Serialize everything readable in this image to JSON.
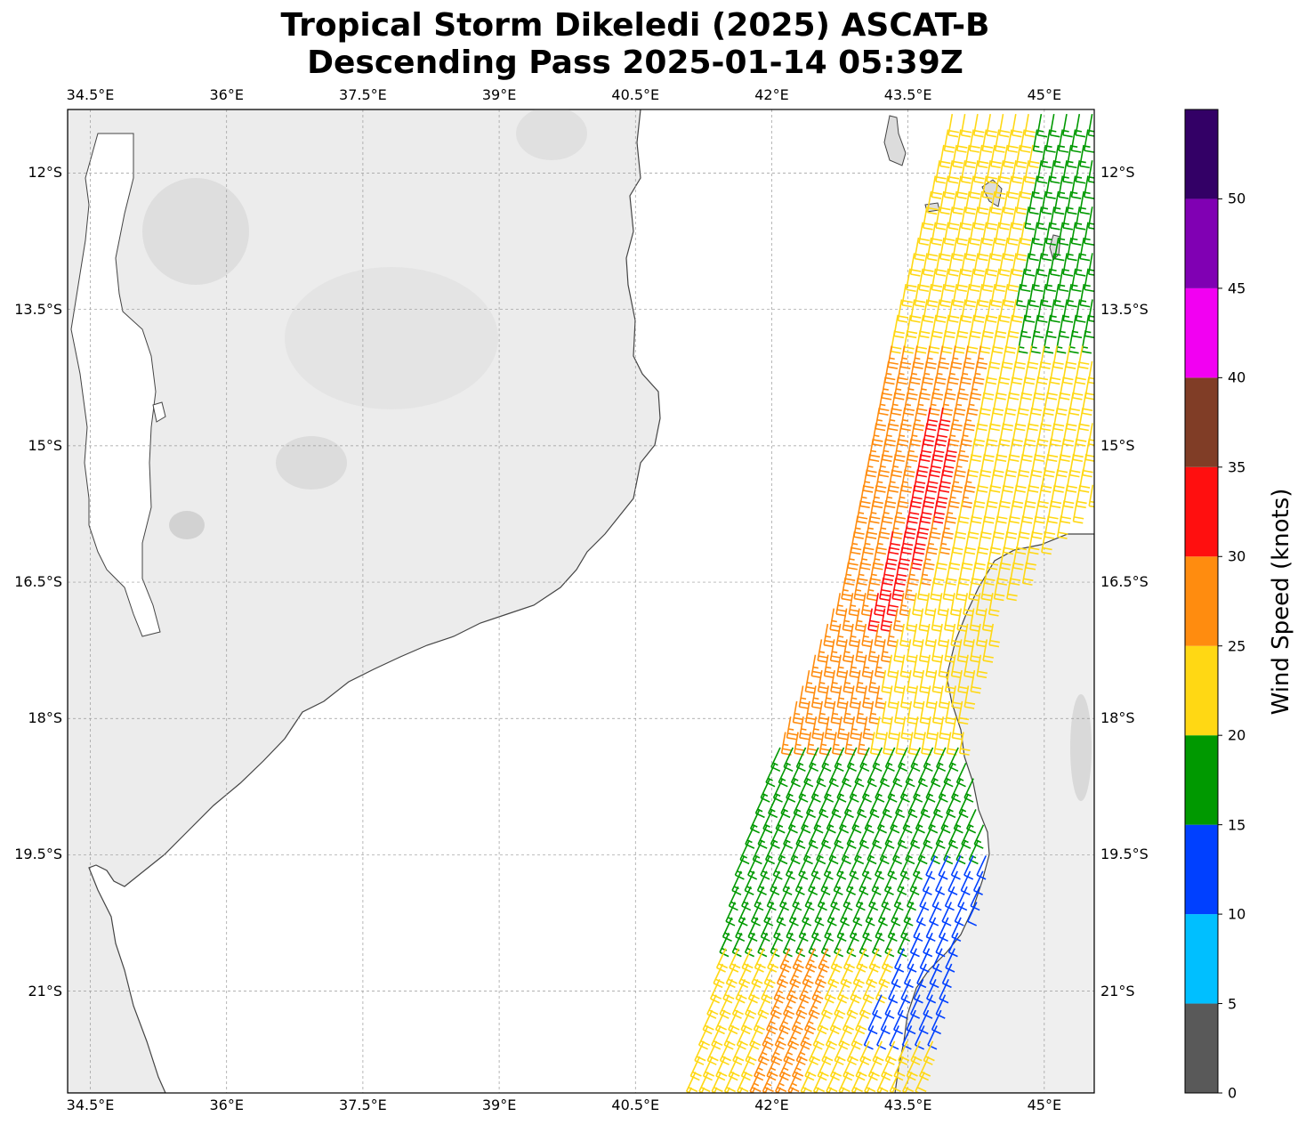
{
  "title": {
    "line1": "Tropical Storm Dikeledi (2025) ASCAT-B",
    "line2": "Descending Pass 2025-01-14 05:39Z"
  },
  "map": {
    "lon_ticks": [
      "34.5°E",
      "36°E",
      "37.5°E",
      "39°E",
      "40.5°E",
      "42°E",
      "43.5°E",
      "45°E"
    ],
    "lat_ticks": [
      "12°S",
      "13.5°S",
      "15°S",
      "16.5°S",
      "18°S",
      "19.5°S",
      "21°S"
    ],
    "land_color": "#eeeeee",
    "ocean_color": "#ffffff",
    "grid": true
  },
  "colorbar": {
    "label": "Wind Speed (knots)",
    "tick_labels": [
      "0",
      "5",
      "10",
      "15",
      "20",
      "25",
      "30",
      "35",
      "40",
      "45",
      "50"
    ],
    "bins": [
      {
        "from": 0,
        "to": 5,
        "color": "#595959"
      },
      {
        "from": 5,
        "to": 10,
        "color": "#00bfff"
      },
      {
        "from": 10,
        "to": 15,
        "color": "#0040ff"
      },
      {
        "from": 15,
        "to": 20,
        "color": "#009900"
      },
      {
        "from": 20,
        "to": 25,
        "color": "#ffd814"
      },
      {
        "from": 25,
        "to": 30,
        "color": "#ff8c0f"
      },
      {
        "from": 30,
        "to": 35,
        "color": "#ff0f0f"
      },
      {
        "from": 35,
        "to": 40,
        "color": "#803d26"
      },
      {
        "from": 40,
        "to": 45,
        "color": "#f200f2"
      },
      {
        "from": 45,
        "to": 50,
        "color": "#8000b3"
      },
      {
        "from": 50,
        "to": 55,
        "color": "#330066"
      }
    ]
  },
  "wind_regions": [
    {
      "name": "north swath",
      "lat_range": [
        11.3,
        13.8
      ],
      "speed_kt": 23,
      "secondary_speed_kt": 17
    },
    {
      "name": "central swath",
      "lat_range": [
        13.8,
        18.3
      ],
      "speed_kt": 27,
      "secondary_speed_kt": 22
    },
    {
      "name": "core",
      "lat_range": [
        14.5,
        16.8
      ],
      "speed_kt": 32
    },
    {
      "name": "south-central swath",
      "lat_range": [
        18.3,
        20.5
      ],
      "speed_kt": 17
    },
    {
      "name": "east coast",
      "lat_range": [
        19.5,
        21.0
      ],
      "speed_kt": 12
    },
    {
      "name": "south swath",
      "lat_range": [
        20.5,
        22.3
      ],
      "speed_kt": 22,
      "secondary_speed_kt": 27
    }
  ]
}
